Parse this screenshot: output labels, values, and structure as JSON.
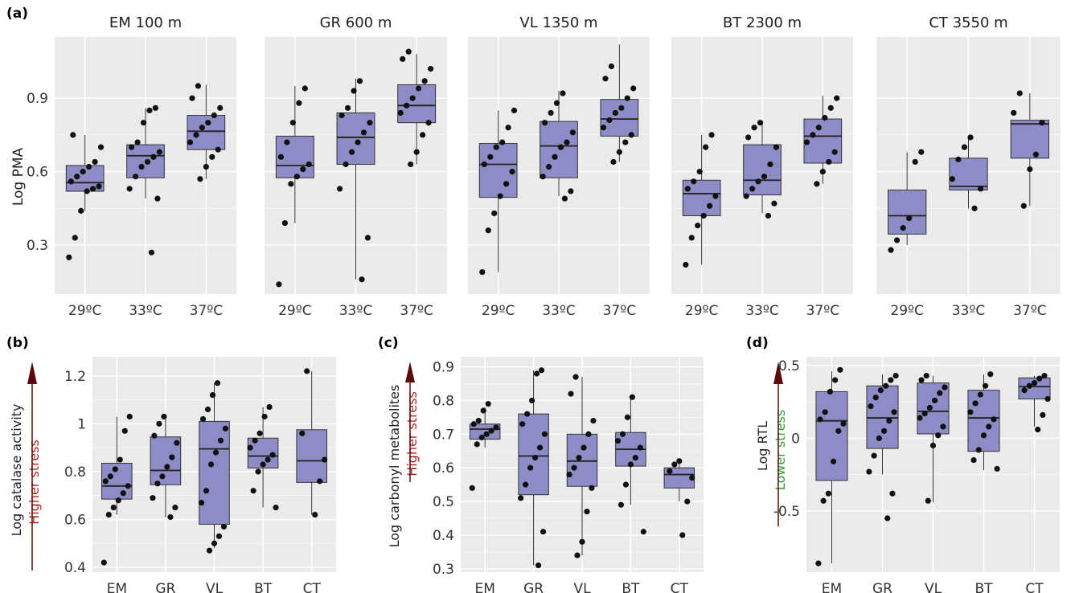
{
  "figure": {
    "panel_letters": [
      "(a)",
      "(b)",
      "(c)",
      "(d)"
    ],
    "colors": {
      "panel_bg": "#ebebeb",
      "grid": "#ffffff",
      "box_fill": "#8e8cc6",
      "box_stroke": "#333333",
      "point": "#111111",
      "stress_high": "#b22222",
      "stress_low": "#2e9e2e",
      "arrow": "#5a0a0a"
    }
  },
  "chart_data": [
    {
      "id": "a",
      "type": "box",
      "ylabel": "Log PMA",
      "yticks": [
        0.3,
        0.6,
        0.9
      ],
      "ylim": [
        0.1,
        1.15
      ],
      "grid": true,
      "facets": [
        {
          "title": "EM 100 m",
          "categories": [
            "29ºC",
            "33ºC",
            "37ºC"
          ],
          "boxes": [
            {
              "min": 0.44,
              "q1": 0.52,
              "median": 0.555,
              "q3": 0.625,
              "max": 0.75
            },
            {
              "min": 0.49,
              "q1": 0.575,
              "median": 0.665,
              "q3": 0.71,
              "max": 0.86
            },
            {
              "min": 0.57,
              "q1": 0.69,
              "median": 0.765,
              "q3": 0.83,
              "max": 0.955
            }
          ],
          "points": [
            [
              0.25,
              0.33,
              0.44,
              0.52,
              0.53,
              0.54,
              0.56,
              0.58,
              0.6,
              0.62,
              0.64,
              0.7,
              0.75
            ],
            [
              0.27,
              0.49,
              0.53,
              0.58,
              0.62,
              0.64,
              0.66,
              0.68,
              0.7,
              0.72,
              0.8,
              0.85,
              0.86
            ],
            [
              0.57,
              0.62,
              0.66,
              0.69,
              0.72,
              0.75,
              0.78,
              0.8,
              0.83,
              0.86,
              0.9,
              0.95
            ]
          ]
        },
        {
          "title": "GR 600 m",
          "categories": [
            "29ºC",
            "33ºC",
            "37ºC"
          ],
          "boxes": [
            {
              "min": 0.39,
              "q1": 0.575,
              "median": 0.625,
              "q3": 0.745,
              "max": 0.95
            },
            {
              "min": 0.16,
              "q1": 0.63,
              "median": 0.74,
              "q3": 0.84,
              "max": 0.98
            },
            {
              "min": 0.63,
              "q1": 0.8,
              "median": 0.87,
              "q3": 0.955,
              "max": 1.08
            }
          ],
          "points": [
            [
              0.14,
              0.39,
              0.55,
              0.58,
              0.61,
              0.63,
              0.66,
              0.72,
              0.8,
              0.88,
              0.94
            ],
            [
              0.16,
              0.33,
              0.53,
              0.63,
              0.68,
              0.72,
              0.76,
              0.8,
              0.83,
              0.86,
              0.93,
              0.97
            ],
            [
              0.63,
              0.68,
              0.75,
              0.8,
              0.84,
              0.87,
              0.9,
              0.94,
              0.97,
              1.02,
              1.06,
              1.09
            ]
          ]
        },
        {
          "title": "VL 1350 m",
          "categories": [
            "29ºC",
            "33ºC",
            "37ºC"
          ],
          "boxes": [
            {
              "min": 0.19,
              "q1": 0.495,
              "median": 0.63,
              "q3": 0.715,
              "max": 0.85
            },
            {
              "min": 0.5,
              "q1": 0.575,
              "median": 0.705,
              "q3": 0.805,
              "max": 0.93
            },
            {
              "min": 0.64,
              "q1": 0.745,
              "median": 0.815,
              "q3": 0.895,
              "max": 1.12
            }
          ],
          "points": [
            [
              0.19,
              0.36,
              0.43,
              0.5,
              0.55,
              0.6,
              0.63,
              0.66,
              0.7,
              0.72,
              0.78,
              0.85
            ],
            [
              0.49,
              0.52,
              0.58,
              0.62,
              0.66,
              0.7,
              0.72,
              0.76,
              0.8,
              0.84,
              0.88,
              0.92
            ],
            [
              0.64,
              0.68,
              0.72,
              0.75,
              0.78,
              0.81,
              0.84,
              0.86,
              0.9,
              0.94,
              0.98,
              1.03
            ]
          ]
        },
        {
          "title": "BT 2300 m",
          "categories": [
            "29ºC",
            "33ºC",
            "37ºC"
          ],
          "boxes": [
            {
              "min": 0.22,
              "q1": 0.42,
              "median": 0.51,
              "q3": 0.565,
              "max": 0.75
            },
            {
              "min": 0.43,
              "q1": 0.505,
              "median": 0.565,
              "q3": 0.71,
              "max": 0.8
            },
            {
              "min": 0.55,
              "q1": 0.635,
              "median": 0.745,
              "q3": 0.815,
              "max": 0.91
            }
          ],
          "points": [
            [
              0.22,
              0.33,
              0.38,
              0.42,
              0.46,
              0.5,
              0.53,
              0.56,
              0.6,
              0.7,
              0.75
            ],
            [
              0.42,
              0.47,
              0.5,
              0.53,
              0.56,
              0.58,
              0.63,
              0.7,
              0.74,
              0.78,
              0.8
            ],
            [
              0.55,
              0.6,
              0.64,
              0.68,
              0.72,
              0.75,
              0.78,
              0.82,
              0.86,
              0.9
            ]
          ]
        },
        {
          "title": "CT 3550 m",
          "categories": [
            "29ºC",
            "33ºC",
            "37ºC"
          ],
          "boxes": [
            {
              "min": 0.3,
              "q1": 0.345,
              "median": 0.42,
              "q3": 0.525,
              "max": 0.68
            },
            {
              "min": 0.45,
              "q1": 0.525,
              "median": 0.54,
              "q3": 0.655,
              "max": 0.74
            },
            {
              "min": 0.46,
              "q1": 0.655,
              "median": 0.795,
              "q3": 0.81,
              "max": 0.92
            }
          ],
          "points": [
            [
              0.28,
              0.32,
              0.37,
              0.41,
              0.64,
              0.68
            ],
            [
              0.45,
              0.53,
              0.57,
              0.65,
              0.7,
              0.74
            ],
            [
              0.46,
              0.61,
              0.67,
              0.8,
              0.84,
              0.92
            ]
          ]
        }
      ]
    },
    {
      "id": "b",
      "type": "box",
      "ylabel": "Log catalase activity",
      "stress_label": "Higher stress",
      "yticks": [
        0.4,
        0.6,
        0.8,
        1.0,
        1.2
      ],
      "ylim": [
        0.38,
        1.28
      ],
      "grid": true,
      "categories": [
        "EM",
        "GR",
        "VL",
        "BT",
        "CT"
      ],
      "boxes": [
        {
          "min": 0.62,
          "q1": 0.685,
          "median": 0.74,
          "q3": 0.835,
          "max": 1.03
        },
        {
          "min": 0.61,
          "q1": 0.745,
          "median": 0.805,
          "q3": 0.945,
          "max": 1.03
        },
        {
          "min": 0.48,
          "q1": 0.58,
          "median": 0.895,
          "q3": 1.01,
          "max": 1.17
        },
        {
          "min": 0.65,
          "q1": 0.815,
          "median": 0.865,
          "q3": 0.94,
          "max": 1.07
        },
        {
          "min": 0.62,
          "q1": 0.755,
          "median": 0.845,
          "q3": 0.975,
          "max": 1.22
        }
      ],
      "points": [
        [
          0.42,
          0.62,
          0.65,
          0.68,
          0.71,
          0.74,
          0.76,
          0.78,
          0.81,
          0.85,
          0.97,
          1.03
        ],
        [
          0.61,
          0.65,
          0.69,
          0.75,
          0.78,
          0.82,
          0.86,
          0.92,
          0.95,
          1.0,
          1.03
        ],
        [
          0.47,
          0.5,
          0.53,
          0.57,
          0.67,
          0.72,
          0.83,
          0.88,
          0.93,
          0.98,
          1.02,
          1.06,
          1.12,
          1.17
        ],
        [
          0.65,
          0.72,
          0.8,
          0.83,
          0.85,
          0.87,
          0.9,
          0.93,
          0.96,
          1.03,
          1.07
        ],
        [
          0.62,
          0.76,
          0.85,
          0.96,
          1.22
        ]
      ]
    },
    {
      "id": "c",
      "type": "box",
      "ylabel": "Log carbonyl metabolites",
      "stress_label": "Higher stress",
      "yticks": [
        0.3,
        0.4,
        0.5,
        0.6,
        0.7,
        0.8,
        0.9
      ],
      "ylim": [
        0.29,
        0.93
      ],
      "grid": true,
      "categories": [
        "EM",
        "GR",
        "VL",
        "BT",
        "CT"
      ],
      "boxes": [
        {
          "min": 0.66,
          "q1": 0.685,
          "median": 0.715,
          "q3": 0.73,
          "max": 0.78
        },
        {
          "min": 0.31,
          "q1": 0.52,
          "median": 0.635,
          "q3": 0.76,
          "max": 0.89
        },
        {
          "min": 0.34,
          "q1": 0.545,
          "median": 0.62,
          "q3": 0.7,
          "max": 0.87
        },
        {
          "min": 0.49,
          "q1": 0.605,
          "median": 0.655,
          "q3": 0.705,
          "max": 0.81
        },
        {
          "min": 0.5,
          "q1": 0.54,
          "median": 0.58,
          "q3": 0.6,
          "max": 0.62
        }
      ],
      "points": [
        [
          0.54,
          0.67,
          0.69,
          0.7,
          0.71,
          0.72,
          0.73,
          0.74,
          0.77,
          0.79
        ],
        [
          0.31,
          0.41,
          0.51,
          0.55,
          0.6,
          0.63,
          0.66,
          0.7,
          0.73,
          0.76,
          0.8,
          0.88,
          0.89
        ],
        [
          0.34,
          0.38,
          0.47,
          0.54,
          0.58,
          0.6,
          0.63,
          0.66,
          0.7,
          0.74,
          0.82,
          0.87
        ],
        [
          0.41,
          0.49,
          0.55,
          0.61,
          0.63,
          0.66,
          0.68,
          0.7,
          0.75,
          0.81
        ],
        [
          0.4,
          0.5,
          0.57,
          0.59,
          0.61,
          0.62
        ]
      ]
    },
    {
      "id": "d",
      "type": "box",
      "ylabel": "Log RTL",
      "stress_label": "Lower stress",
      "yticks": [
        -0.5,
        0,
        0.5
      ],
      "ytick_labels": [
        "-0.5",
        "0",
        "0.5"
      ],
      "ylim": [
        -0.92,
        0.56
      ],
      "grid": true,
      "categories": [
        "EM",
        "GR",
        "VL",
        "BT",
        "CT"
      ],
      "boxes": [
        {
          "min": -0.86,
          "q1": -0.29,
          "median": 0.12,
          "q3": 0.32,
          "max": 0.46
        },
        {
          "min": -0.25,
          "q1": -0.07,
          "median": 0.14,
          "q3": 0.36,
          "max": 0.44
        },
        {
          "min": -0.44,
          "q1": 0.03,
          "median": 0.185,
          "q3": 0.38,
          "max": 0.43
        },
        {
          "min": -0.22,
          "q1": -0.09,
          "median": 0.14,
          "q3": 0.33,
          "max": 0.44
        },
        {
          "min": 0.08,
          "q1": 0.27,
          "median": 0.355,
          "q3": 0.415,
          "max": 0.43
        }
      ],
      "points": [
        [
          -0.86,
          -0.43,
          -0.38,
          -0.16,
          0.05,
          0.1,
          0.13,
          0.18,
          0.32,
          0.4,
          0.47
        ],
        [
          -0.55,
          -0.38,
          -0.23,
          -0.12,
          0.0,
          0.05,
          0.12,
          0.18,
          0.22,
          0.28,
          0.33,
          0.36,
          0.4,
          0.43
        ],
        [
          -0.43,
          -0.05,
          0.02,
          0.08,
          0.14,
          0.17,
          0.21,
          0.26,
          0.31,
          0.35,
          0.4,
          0.43
        ],
        [
          -0.21,
          -0.15,
          -0.08,
          0.02,
          0.08,
          0.13,
          0.18,
          0.24,
          0.3,
          0.36,
          0.44
        ],
        [
          0.06,
          0.16,
          0.27,
          0.33,
          0.36,
          0.38,
          0.41,
          0.43
        ]
      ]
    }
  ]
}
